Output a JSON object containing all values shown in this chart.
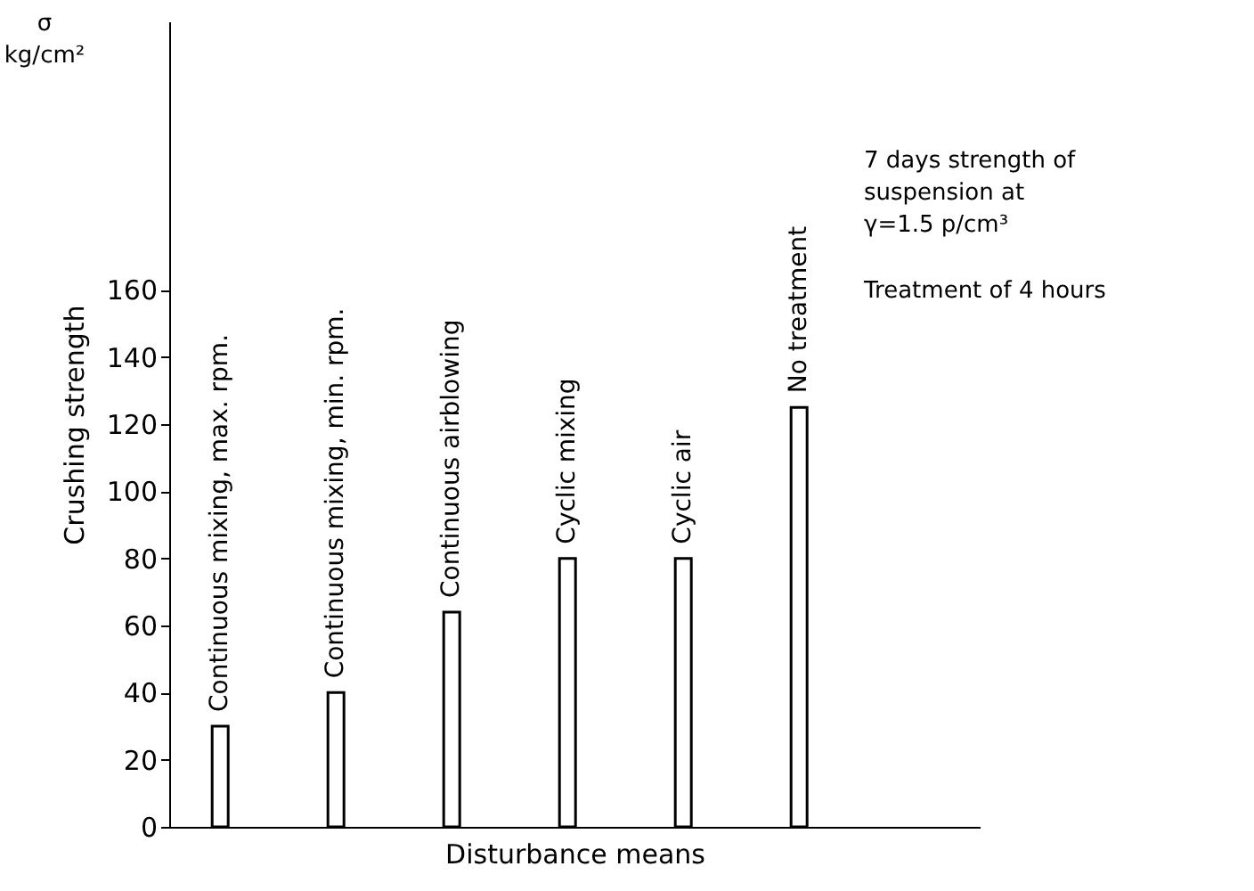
{
  "chart_data": {
    "type": "bar",
    "ylabel": "Crushing strength",
    "xlabel": "Disturbance means",
    "categories": [
      "Continuous mixing, max. rpm.",
      "Continuous mixing, min. rpm.",
      "Continuous airblowing",
      "Cyclic mixing",
      "Cyclic air",
      "No treatment"
    ],
    "values": [
      30,
      40,
      64,
      80,
      80,
      125
    ],
    "color": "#ffffff",
    "ylim": [
      0,
      240
    ],
    "yticks": [
      0,
      20,
      40,
      60,
      80,
      100,
      120,
      140,
      160
    ],
    "annotations": [
      "σ\nkg/cm²",
      "7 days strength of\nsuspension  at\nγ=1.5 p/cm³",
      "Treatment of 4 hours"
    ]
  }
}
